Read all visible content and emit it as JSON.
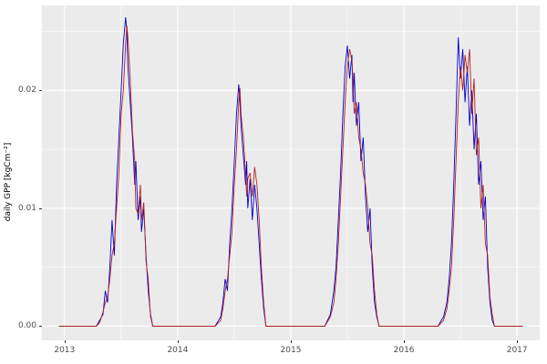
{
  "chart_data": {
    "type": "line",
    "title": "",
    "xlabel": "",
    "ylabel": "daily GPP [kgCm⁻²]",
    "xlim": [
      2012.8,
      2017.2
    ],
    "ylim": [
      -0.0012,
      0.0272
    ],
    "grid": "on",
    "legend": "none",
    "panel_bg": "#ebebeb",
    "grid_major_color": "#ffffff",
    "grid_minor_color": "#f5f5f5",
    "x_ticks": {
      "values": [
        2013,
        2014,
        2015,
        2016,
        2017
      ],
      "labels": [
        "2013",
        "2014",
        "2015",
        "2016",
        "2017"
      ]
    },
    "y_ticks": {
      "values": [
        0.0,
        0.01,
        0.02
      ],
      "labels": [
        "0.00",
        "0.01",
        "0.02"
      ]
    },
    "x_minor": [
      2013.5,
      2014.5,
      2015.5,
      2016.5
    ],
    "y_minor": [
      0.005,
      0.015,
      0.025
    ],
    "x": [
      2012.95,
      2013.28,
      2013.31,
      2013.34,
      2013.36,
      2013.38,
      2013.4,
      2013.42,
      2013.44,
      2013.46,
      2013.48,
      2013.5,
      2013.52,
      2013.54,
      2013.55,
      2013.56,
      2013.58,
      2013.6,
      2013.62,
      2013.63,
      2013.65,
      2013.67,
      2013.68,
      2013.7,
      2013.72,
      2013.74,
      2013.76,
      2013.78,
      2014.33,
      2014.38,
      2014.4,
      2014.42,
      2014.44,
      2014.46,
      2014.48,
      2014.5,
      2014.52,
      2014.54,
      2014.55,
      2014.56,
      2014.58,
      2014.6,
      2014.61,
      2014.62,
      2014.64,
      2014.66,
      2014.68,
      2014.7,
      2014.72,
      2014.74,
      2014.76,
      2014.78,
      2015.3,
      2015.35,
      2015.38,
      2015.4,
      2015.42,
      2015.44,
      2015.46,
      2015.48,
      2015.5,
      2015.52,
      2015.54,
      2015.55,
      2015.56,
      2015.58,
      2015.6,
      2015.62,
      2015.64,
      2015.66,
      2015.68,
      2015.7,
      2015.72,
      2015.74,
      2015.76,
      2015.78,
      2016.3,
      2016.35,
      2016.38,
      2016.4,
      2016.42,
      2016.44,
      2016.46,
      2016.48,
      2016.5,
      2016.52,
      2016.54,
      2016.56,
      2016.58,
      2016.6,
      2016.62,
      2016.64,
      2016.66,
      2016.68,
      2016.7,
      2016.72,
      2016.74,
      2016.76,
      2016.78,
      2016.8,
      2017.05
    ],
    "series": [
      {
        "name": "series-blue",
        "color": "#0000cd",
        "values": [
          0,
          0,
          0.0005,
          0.001,
          0.003,
          0.002,
          0.005,
          0.009,
          0.006,
          0.012,
          0.016,
          0.02,
          0.024,
          0.0262,
          0.025,
          0.022,
          0.019,
          0.016,
          0.012,
          0.014,
          0.009,
          0.011,
          0.008,
          0.01,
          0.006,
          0.003,
          0.001,
          0,
          0,
          0.0008,
          0.002,
          0.004,
          0.003,
          0.007,
          0.01,
          0.014,
          0.018,
          0.0205,
          0.019,
          0.017,
          0.0145,
          0.012,
          0.014,
          0.01,
          0.0125,
          0.009,
          0.012,
          0.01,
          0.007,
          0.004,
          0.0015,
          0,
          0,
          0.001,
          0.003,
          0.005,
          0.009,
          0.013,
          0.018,
          0.022,
          0.0238,
          0.021,
          0.023,
          0.019,
          0.0215,
          0.017,
          0.019,
          0.014,
          0.016,
          0.011,
          0.008,
          0.01,
          0.005,
          0.002,
          0.0008,
          0,
          0,
          0.0008,
          0.002,
          0.004,
          0.007,
          0.012,
          0.018,
          0.0245,
          0.021,
          0.0235,
          0.019,
          0.022,
          0.017,
          0.02,
          0.015,
          0.018,
          0.012,
          0.014,
          0.009,
          0.011,
          0.005,
          0.002,
          0.0005,
          0,
          0
        ]
      },
      {
        "name": "series-red",
        "color": "#b22222",
        "values": [
          0,
          0,
          0.0003,
          0.0012,
          0.002,
          0.0025,
          0.004,
          0.006,
          0.007,
          0.01,
          0.013,
          0.018,
          0.02,
          0.024,
          0.0255,
          0.0245,
          0.021,
          0.0165,
          0.014,
          0.01,
          0.0095,
          0.012,
          0.009,
          0.0105,
          0.0055,
          0.004,
          0.0008,
          0,
          0,
          0.0005,
          0.0015,
          0.003,
          0.004,
          0.006,
          0.008,
          0.012,
          0.015,
          0.019,
          0.0202,
          0.018,
          0.016,
          0.013,
          0.011,
          0.0125,
          0.013,
          0.011,
          0.0135,
          0.012,
          0.009,
          0.005,
          0.002,
          0,
          0,
          0.0008,
          0.002,
          0.004,
          0.007,
          0.011,
          0.015,
          0.019,
          0.022,
          0.0235,
          0.0225,
          0.021,
          0.018,
          0.019,
          0.016,
          0.015,
          0.013,
          0.012,
          0.01,
          0.007,
          0.006,
          0.003,
          0.001,
          0,
          0,
          0.0005,
          0.0015,
          0.003,
          0.005,
          0.009,
          0.014,
          0.019,
          0.022,
          0.02,
          0.023,
          0.0215,
          0.0235,
          0.018,
          0.021,
          0.0145,
          0.016,
          0.01,
          0.012,
          0.007,
          0.006,
          0.0025,
          0.001,
          0,
          0
        ]
      }
    ]
  }
}
